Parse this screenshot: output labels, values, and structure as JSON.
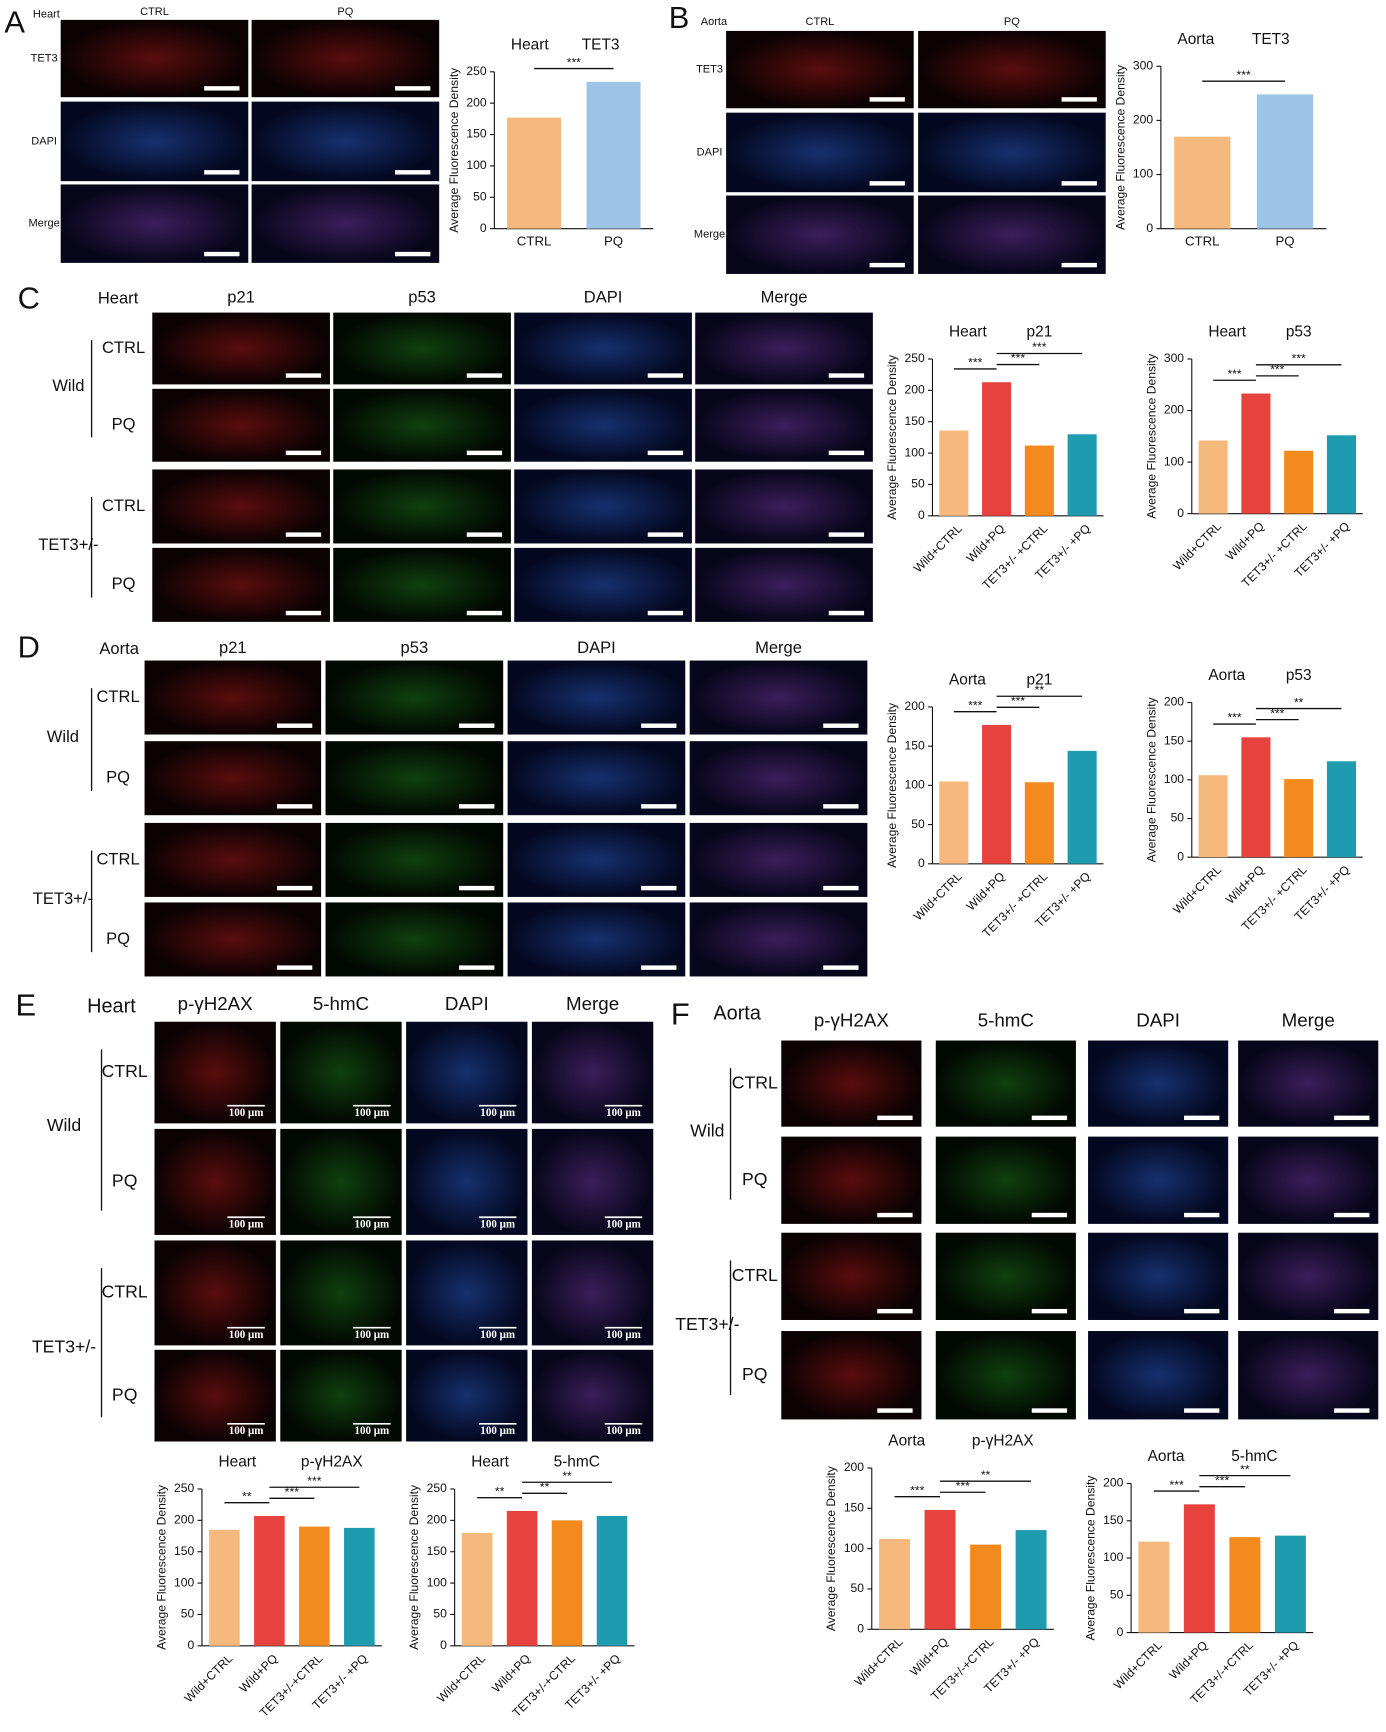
{
  "panels": [
    {
      "letter": "A",
      "tissue": "Heart",
      "columns": [
        "CTRL",
        "PQ"
      ],
      "rows": [
        "TET3",
        "DAPI",
        "Merge"
      ]
    },
    {
      "letter": "B",
      "tissue": "Aorta",
      "columns": [
        "CTRL",
        "PQ"
      ],
      "rows": [
        "TET3",
        "DAPI",
        "Merge"
      ]
    },
    {
      "letter": "C",
      "tissue": "Heart",
      "columns": [
        "p21",
        "p53",
        "DAPI",
        "Merge"
      ],
      "groups": [
        {
          "name": "Wild",
          "rows": [
            "CTRL",
            "PQ"
          ]
        },
        {
          "name": "TET3+/-",
          "rows": [
            "CTRL",
            "PQ"
          ]
        }
      ]
    },
    {
      "letter": "D",
      "tissue": "Aorta",
      "columns": [
        "p21",
        "p53",
        "DAPI",
        "Merge"
      ],
      "groups": [
        {
          "name": "Wild",
          "rows": [
            "CTRL",
            "PQ"
          ]
        },
        {
          "name": "TET3+/-",
          "rows": [
            "CTRL",
            "PQ"
          ]
        }
      ]
    },
    {
      "letter": "E",
      "tissue": "Heart",
      "columns": [
        "p-γH2AX",
        "5-hmC",
        "DAPI",
        "Merge"
      ],
      "groups": [
        {
          "name": "Wild",
          "rows": [
            "CTRL",
            "PQ"
          ]
        },
        {
          "name": "TET3+/-",
          "rows": [
            "CTRL",
            "PQ"
          ]
        }
      ],
      "scale_label": "100 μm"
    },
    {
      "letter": "F",
      "tissue": "Aorta",
      "columns": [
        "p-γH2AX",
        "5-hmC",
        "DAPI",
        "Merge"
      ],
      "groups": [
        {
          "name": "Wild",
          "rows": [
            "CTRL",
            "PQ"
          ]
        },
        {
          "name": "TET3+/-",
          "rows": [
            "CTRL",
            "PQ"
          ]
        }
      ]
    }
  ],
  "chart_data": [
    {
      "type": "bar",
      "title": "Heart",
      "subtitle": "TET3",
      "y_label": "Average Fluorescence Density",
      "categories": [
        "CTRL",
        "PQ"
      ],
      "values": [
        177,
        234
      ],
      "colors": [
        "#f6b97d",
        "#9dc3e6"
      ],
      "ylim": [
        0,
        250
      ],
      "yticks": [
        0,
        50,
        100,
        150,
        200,
        250
      ],
      "annotations": [
        "***"
      ]
    },
    {
      "type": "bar",
      "title": "Aorta",
      "subtitle": "TET3",
      "y_label": "Average Fluorescence Density",
      "categories": [
        "CTRL",
        "PQ"
      ],
      "values": [
        170,
        248
      ],
      "colors": [
        "#f6b97d",
        "#9dc3e6"
      ],
      "ylim": [
        0,
        300
      ],
      "yticks": [
        0,
        100,
        200,
        300
      ],
      "annotations": [
        "***"
      ]
    },
    {
      "type": "bar",
      "title": "Heart",
      "subtitle": "p21",
      "y_label": "Average Fluorescence Density",
      "categories": [
        "Wild+CTRL",
        "Wild+PQ",
        "TET3+/- +CTRL",
        "TET3+/- +PQ"
      ],
      "values": [
        136,
        213,
        112,
        130
      ],
      "colors": [
        "#f5b97e",
        "#e8423f",
        "#f28a1e",
        "#1f9bb0"
      ],
      "ylim": [
        0,
        250
      ],
      "yticks": [
        0,
        50,
        100,
        150,
        200,
        250
      ],
      "annotations": [
        "***",
        "***",
        "***"
      ]
    },
    {
      "type": "bar",
      "title": "Heart",
      "subtitle": "p53",
      "y_label": "Average Fluorescence Density",
      "categories": [
        "Wild+CTRL",
        "Wild+PQ",
        "TET3+/- +CTRL",
        "TET3+/- +PQ"
      ],
      "values": [
        142,
        233,
        122,
        152
      ],
      "colors": [
        "#f5b97e",
        "#e8423f",
        "#f28a1e",
        "#1f9bb0"
      ],
      "ylim": [
        0,
        300
      ],
      "yticks": [
        0,
        100,
        200,
        300
      ],
      "annotations": [
        "***",
        "***",
        "***"
      ]
    },
    {
      "type": "bar",
      "title": "Aorta",
      "subtitle": "p21",
      "y_label": "Average Fluorescence Density",
      "categories": [
        "Wild+CTRL",
        "Wild+PQ",
        "TET3+/- +CTRL",
        "TET3+/- +PQ"
      ],
      "values": [
        105,
        177,
        104,
        144
      ],
      "colors": [
        "#f5b97e",
        "#e8423f",
        "#f28a1e",
        "#1f9bb0"
      ],
      "ylim": [
        0,
        200
      ],
      "yticks": [
        0,
        50,
        100,
        150,
        200
      ],
      "annotations": [
        "***",
        "***",
        "**"
      ]
    },
    {
      "type": "bar",
      "title": "Aorta",
      "subtitle": "p53",
      "y_label": "Average Fluorescence Density",
      "categories": [
        "Wild+CTRL",
        "Wild+PQ",
        "TET3+/- +CTRL",
        "TET3+/- +PQ"
      ],
      "values": [
        106,
        155,
        101,
        124
      ],
      "colors": [
        "#f5b97e",
        "#e8423f",
        "#f28a1e",
        "#1f9bb0"
      ],
      "ylim": [
        0,
        200
      ],
      "yticks": [
        0,
        50,
        100,
        150,
        200
      ],
      "annotations": [
        "***",
        "***",
        "**"
      ]
    },
    {
      "type": "bar",
      "title": "Heart",
      "subtitle": "p-γH2AX",
      "y_label": "Average Fluorescence Density",
      "categories": [
        "Wild+CTRL",
        "Wild+PQ",
        "TET3+/-+CTRL",
        "TET3+/- +PQ"
      ],
      "values": [
        185,
        207,
        190,
        188
      ],
      "colors": [
        "#f5b97e",
        "#e8423f",
        "#f28a1e",
        "#1f9bb0"
      ],
      "ylim": [
        0,
        250
      ],
      "yticks": [
        0,
        50,
        100,
        150,
        200,
        250
      ],
      "annotations": [
        "**",
        "***",
        "***"
      ]
    },
    {
      "type": "bar",
      "title": "Heart",
      "subtitle": "5-hmC",
      "y_label": "Average Fluorescence Density",
      "categories": [
        "Wild+CTRL",
        "Wild+PQ",
        "TET3+/-+CTRL",
        "TET3+/- +PQ"
      ],
      "values": [
        180,
        215,
        200,
        207
      ],
      "colors": [
        "#f5b97e",
        "#e8423f",
        "#f28a1e",
        "#1f9bb0"
      ],
      "ylim": [
        0,
        250
      ],
      "yticks": [
        0,
        50,
        100,
        150,
        200,
        250
      ],
      "annotations": [
        "**",
        "**",
        "**"
      ]
    },
    {
      "type": "bar",
      "title": "Aorta",
      "subtitle": "p-γH2AX",
      "y_label": "Average Fluorescence Density",
      "categories": [
        "Wild+CTRL",
        "Wild+PQ",
        "TET3+/-+CTRL",
        "TET3+/- +PQ"
      ],
      "values": [
        112,
        148,
        105,
        123
      ],
      "colors": [
        "#f5b97e",
        "#e8423f",
        "#f28a1e",
        "#1f9bb0"
      ],
      "ylim": [
        0,
        200
      ],
      "yticks": [
        0,
        50,
        100,
        150,
        200
      ],
      "annotations": [
        "***",
        "***",
        "**"
      ]
    },
    {
      "type": "bar",
      "title": "Aorta",
      "subtitle": "5-hmC",
      "y_label": "Average Fluorescence Density",
      "categories": [
        "Wild+CTRL",
        "Wild+PQ",
        "TET3+/-+CTRL",
        "TET3+/- +PQ"
      ],
      "values": [
        122,
        172,
        128,
        130
      ],
      "colors": [
        "#f5b97e",
        "#e8423f",
        "#f28a1e",
        "#1f9bb0"
      ],
      "ylim": [
        0,
        200
      ],
      "yticks": [
        0,
        50,
        100,
        150,
        200
      ],
      "annotations": [
        "***",
        "***",
        "**"
      ]
    }
  ]
}
